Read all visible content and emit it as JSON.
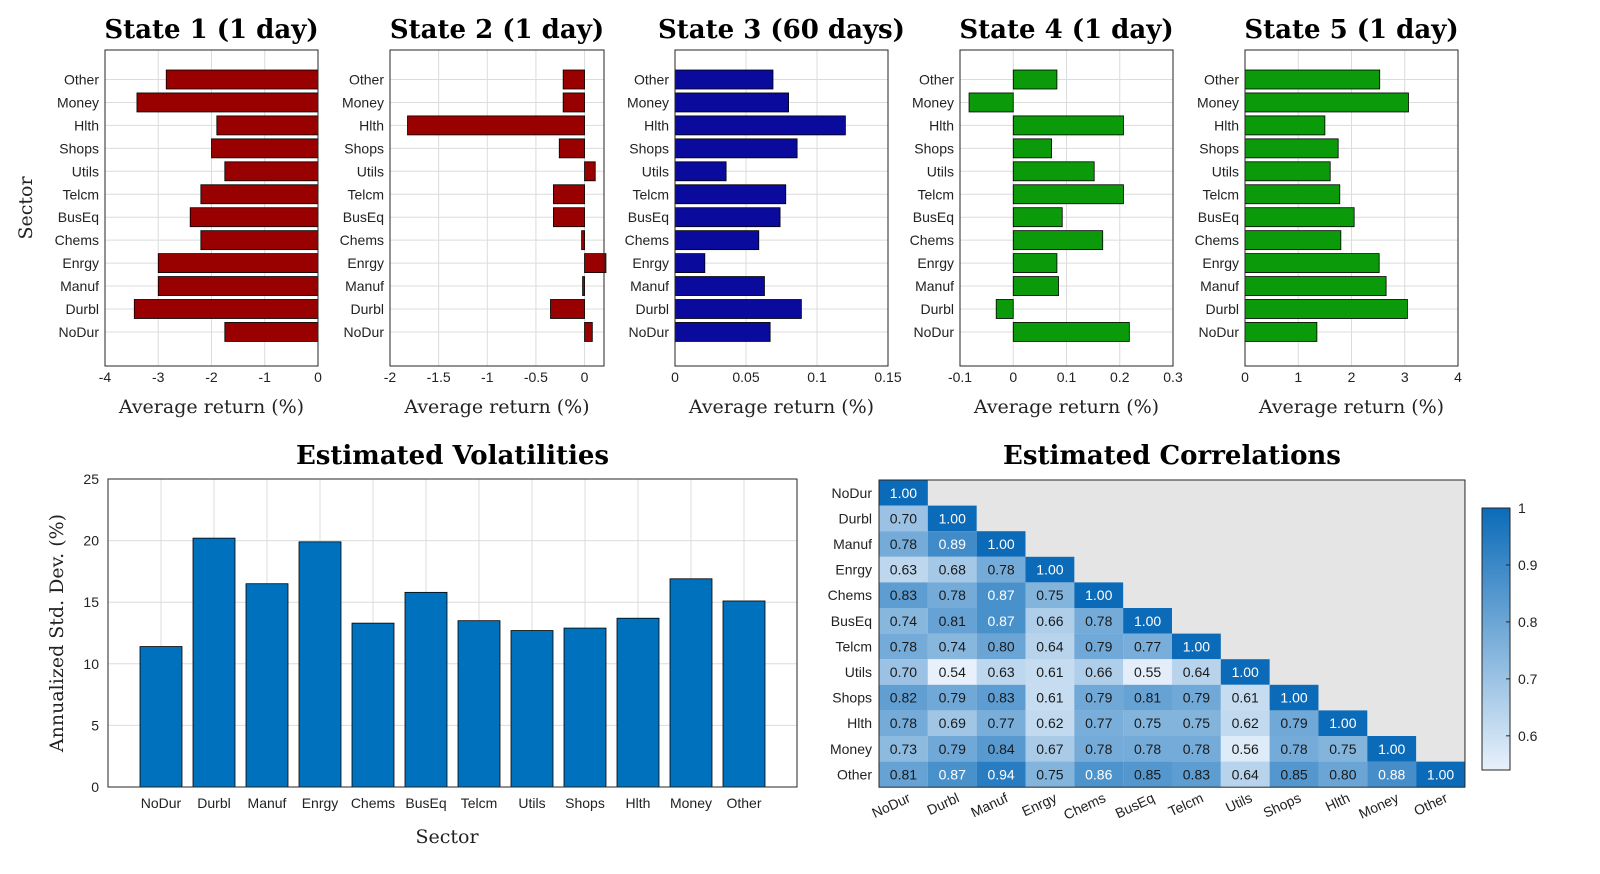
{
  "chart_data": [
    {
      "id": "state1",
      "type": "bar",
      "orientation": "horizontal",
      "title": "State 1 (1 day)",
      "xlabel": "Average return (%)",
      "ylabel": "Sector",
      "color": "#990000",
      "xlim": [
        -4,
        0
      ],
      "xticks": [
        -4,
        -3,
        -2,
        -1,
        0
      ],
      "xtick_labels": [
        "-4",
        "-3",
        "-2",
        "-1",
        "0"
      ],
      "categories": [
        "NoDur",
        "Durbl",
        "Manuf",
        "Enrgy",
        "Chems",
        "BusEq",
        "Telcm",
        "Utils",
        "Shops",
        "Hlth",
        "Money",
        "Other"
      ],
      "values": [
        -1.75,
        -3.45,
        -3.0,
        -3.0,
        -2.2,
        -2.4,
        -2.2,
        -1.75,
        -2.0,
        -1.9,
        -3.4,
        -2.85
      ]
    },
    {
      "id": "state2",
      "type": "bar",
      "orientation": "horizontal",
      "title": "State 2 (1 day)",
      "xlabel": "Average return (%)",
      "ylabel": "",
      "color": "#990000",
      "xlim": [
        -2,
        0.2
      ],
      "xticks": [
        -2,
        -1.5,
        -1,
        -0.5,
        0
      ],
      "xtick_labels": [
        "-2",
        "-1.5",
        "-1",
        "-0.5",
        "0"
      ],
      "categories": [
        "NoDur",
        "Durbl",
        "Manuf",
        "Enrgy",
        "Chems",
        "BusEq",
        "Telcm",
        "Utils",
        "Shops",
        "Hlth",
        "Money",
        "Other"
      ],
      "values": [
        0.08,
        -0.35,
        -0.02,
        0.22,
        -0.03,
        -0.32,
        -0.32,
        0.11,
        -0.26,
        -1.82,
        -0.22,
        -0.22
      ]
    },
    {
      "id": "state3",
      "type": "bar",
      "orientation": "horizontal",
      "title": "State 3 (60 days)",
      "xlabel": "Average return (%)",
      "ylabel": "",
      "color": "#0a0a9c",
      "xlim": [
        0,
        0.15
      ],
      "xticks": [
        0,
        0.05,
        0.1,
        0.15
      ],
      "xtick_labels": [
        "0",
        "0.05",
        "0.1",
        "0.15"
      ],
      "categories": [
        "NoDur",
        "Durbl",
        "Manuf",
        "Enrgy",
        "Chems",
        "BusEq",
        "Telcm",
        "Utils",
        "Shops",
        "Hlth",
        "Money",
        "Other"
      ],
      "values": [
        0.067,
        0.089,
        0.063,
        0.021,
        0.059,
        0.074,
        0.078,
        0.036,
        0.086,
        0.12,
        0.08,
        0.069
      ]
    },
    {
      "id": "state4",
      "type": "bar",
      "orientation": "horizontal",
      "title": "State 4 (1 day)",
      "xlabel": "Average return (%)",
      "ylabel": "",
      "color": "#0a9a0a",
      "xlim": [
        -0.1,
        0.3
      ],
      "xticks": [
        -0.1,
        0,
        0.1,
        0.2,
        0.3
      ],
      "xtick_labels": [
        "-0.1",
        "0",
        "0.1",
        "0.2",
        "0.3"
      ],
      "categories": [
        "NoDur",
        "Durbl",
        "Manuf",
        "Enrgy",
        "Chems",
        "BusEq",
        "Telcm",
        "Utils",
        "Shops",
        "Hlth",
        "Money",
        "Other"
      ],
      "values": [
        0.218,
        -0.032,
        0.085,
        0.082,
        0.168,
        0.092,
        0.207,
        0.152,
        0.072,
        0.207,
        -0.083,
        0.082
      ]
    },
    {
      "id": "state5",
      "type": "bar",
      "orientation": "horizontal",
      "title": "State 5 (1 day)",
      "xlabel": "Average return (%)",
      "ylabel": "",
      "color": "#0a9a0a",
      "xlim": [
        0,
        4
      ],
      "xticks": [
        0,
        1,
        2,
        3,
        4
      ],
      "xtick_labels": [
        "0",
        "1",
        "2",
        "3",
        "4"
      ],
      "categories": [
        "NoDur",
        "Durbl",
        "Manuf",
        "Enrgy",
        "Chems",
        "BusEq",
        "Telcm",
        "Utils",
        "Shops",
        "Hlth",
        "Money",
        "Other"
      ],
      "values": [
        1.35,
        3.05,
        2.65,
        2.52,
        1.8,
        2.05,
        1.78,
        1.6,
        1.75,
        1.5,
        3.07,
        2.53
      ]
    },
    {
      "id": "volatilities",
      "type": "bar",
      "orientation": "vertical",
      "title": "Estimated Volatilities",
      "xlabel": "Sector",
      "ylabel": "Annualized Std. Dev. (%)",
      "color": "#0072bd",
      "ylim": [
        0,
        25
      ],
      "yticks": [
        0,
        5,
        10,
        15,
        20,
        25
      ],
      "ytick_labels": [
        "0",
        "5",
        "10",
        "15",
        "20",
        "25"
      ],
      "categories": [
        "NoDur",
        "Durbl",
        "Manuf",
        "Enrgy",
        "Chems",
        "BusEq",
        "Telcm",
        "Utils",
        "Shops",
        "Hlth",
        "Money",
        "Other"
      ],
      "values": [
        11.4,
        20.2,
        16.5,
        19.9,
        13.3,
        15.8,
        13.5,
        12.7,
        12.9,
        13.7,
        16.9,
        15.1
      ]
    },
    {
      "id": "correlations",
      "type": "heatmap",
      "title": "Estimated Correlations",
      "labels": [
        "NoDur",
        "Durbl",
        "Manuf",
        "Enrgy",
        "Chems",
        "BusEq",
        "Telcm",
        "Utils",
        "Shops",
        "Hlth",
        "Money",
        "Other"
      ],
      "rows": [
        [
          "1.00"
        ],
        [
          "0.70",
          "1.00"
        ],
        [
          "0.78",
          "0.89",
          "1.00"
        ],
        [
          "0.63",
          "0.68",
          "0.78",
          "1.00"
        ],
        [
          "0.83",
          "0.78",
          "0.87",
          "0.75",
          "1.00"
        ],
        [
          "0.74",
          "0.81",
          "0.87",
          "0.66",
          "0.78",
          "1.00"
        ],
        [
          "0.78",
          "0.74",
          "0.80",
          "0.64",
          "0.79",
          "0.77",
          "1.00"
        ],
        [
          "0.70",
          "0.54",
          "0.63",
          "0.61",
          "0.66",
          "0.55",
          "0.64",
          "1.00"
        ],
        [
          "0.82",
          "0.79",
          "0.83",
          "0.61",
          "0.79",
          "0.81",
          "0.79",
          "0.61",
          "1.00"
        ],
        [
          "0.78",
          "0.69",
          "0.77",
          "0.62",
          "0.77",
          "0.75",
          "0.75",
          "0.62",
          "0.79",
          "1.00"
        ],
        [
          "0.73",
          "0.79",
          "0.84",
          "0.67",
          "0.78",
          "0.78",
          "0.78",
          "0.56",
          "0.78",
          "0.75",
          "1.00"
        ],
        [
          "0.81",
          "0.87",
          "0.94",
          "0.75",
          "0.86",
          "0.85",
          "0.83",
          "0.64",
          "0.85",
          "0.80",
          "0.88",
          "1.00"
        ]
      ],
      "colorbar_range": [
        0.54,
        1
      ],
      "colorbar_ticks": [
        0.6,
        0.7,
        0.8,
        0.9,
        1
      ],
      "colorbar_labels": [
        "0.6",
        "0.7",
        "0.8",
        "0.9",
        "1"
      ],
      "color_low": "#e8f1fb",
      "color_high": "#0b6bb8",
      "background": "#e5e5e5"
    }
  ]
}
